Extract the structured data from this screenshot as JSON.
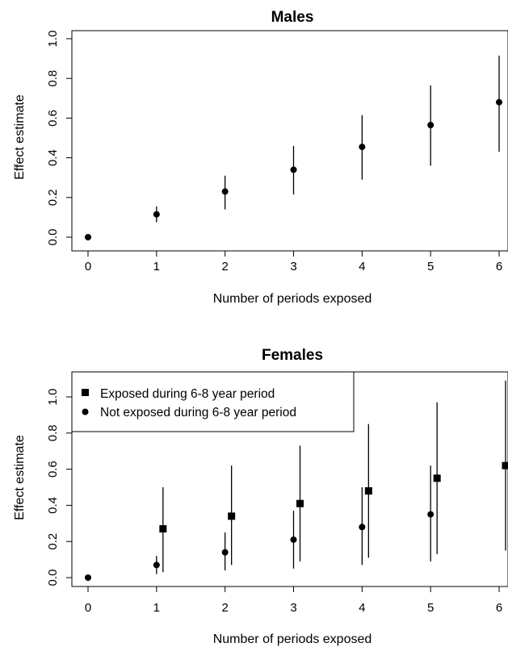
{
  "chart_data": [
    {
      "type": "scatter",
      "title": "Males",
      "xlabel": "Number of periods exposed",
      "ylabel": "Effect estimate",
      "xlim": [
        0,
        6
      ],
      "ylim": [
        0,
        1.0
      ],
      "xticks": [
        "0",
        "1",
        "2",
        "3",
        "4",
        "5",
        "6"
      ],
      "yticks": [
        "0.0",
        "0.2",
        "0.4",
        "0.6",
        "0.8",
        "1.0"
      ],
      "series": [
        {
          "marker": "circle",
          "x": [
            0,
            1,
            2,
            3,
            4,
            5,
            6
          ],
          "y": [
            0.0,
            0.115,
            0.23,
            0.34,
            0.455,
            0.565,
            0.68
          ],
          "lower": [
            null,
            0.075,
            0.14,
            0.215,
            0.29,
            0.36,
            0.43
          ],
          "upper": [
            null,
            0.155,
            0.31,
            0.46,
            0.615,
            0.765,
            0.915
          ]
        }
      ]
    },
    {
      "type": "scatter",
      "title": "Females",
      "xlabel": "Number of periods exposed",
      "ylabel": "Effect estimate",
      "xlim": [
        0,
        6
      ],
      "ylim": [
        0,
        1.1
      ],
      "xticks": [
        "0",
        "1",
        "2",
        "3",
        "4",
        "5",
        "6"
      ],
      "yticks": [
        "0.0",
        "0.2",
        "0.4",
        "0.6",
        "0.8",
        "1.0"
      ],
      "legend_position": "top-left",
      "series": [
        {
          "name": "Exposed during 6-8 year period",
          "marker": "square",
          "x": [
            1,
            2,
            3,
            4,
            5,
            6
          ],
          "y": [
            0.27,
            0.34,
            0.41,
            0.48,
            0.55,
            0.62
          ],
          "lower": [
            0.03,
            0.07,
            0.09,
            0.11,
            0.13,
            0.15
          ],
          "upper": [
            0.5,
            0.62,
            0.73,
            0.85,
            0.97,
            1.09
          ]
        },
        {
          "name": "Not exposed during 6-8 year period",
          "marker": "circle",
          "x": [
            0,
            1,
            2,
            3,
            4,
            5
          ],
          "y": [
            0.0,
            0.07,
            0.14,
            0.21,
            0.28,
            0.35
          ],
          "lower": [
            null,
            0.02,
            0.04,
            0.05,
            0.07,
            0.09
          ],
          "upper": [
            null,
            0.12,
            0.25,
            0.37,
            0.5,
            0.62
          ]
        }
      ]
    }
  ]
}
